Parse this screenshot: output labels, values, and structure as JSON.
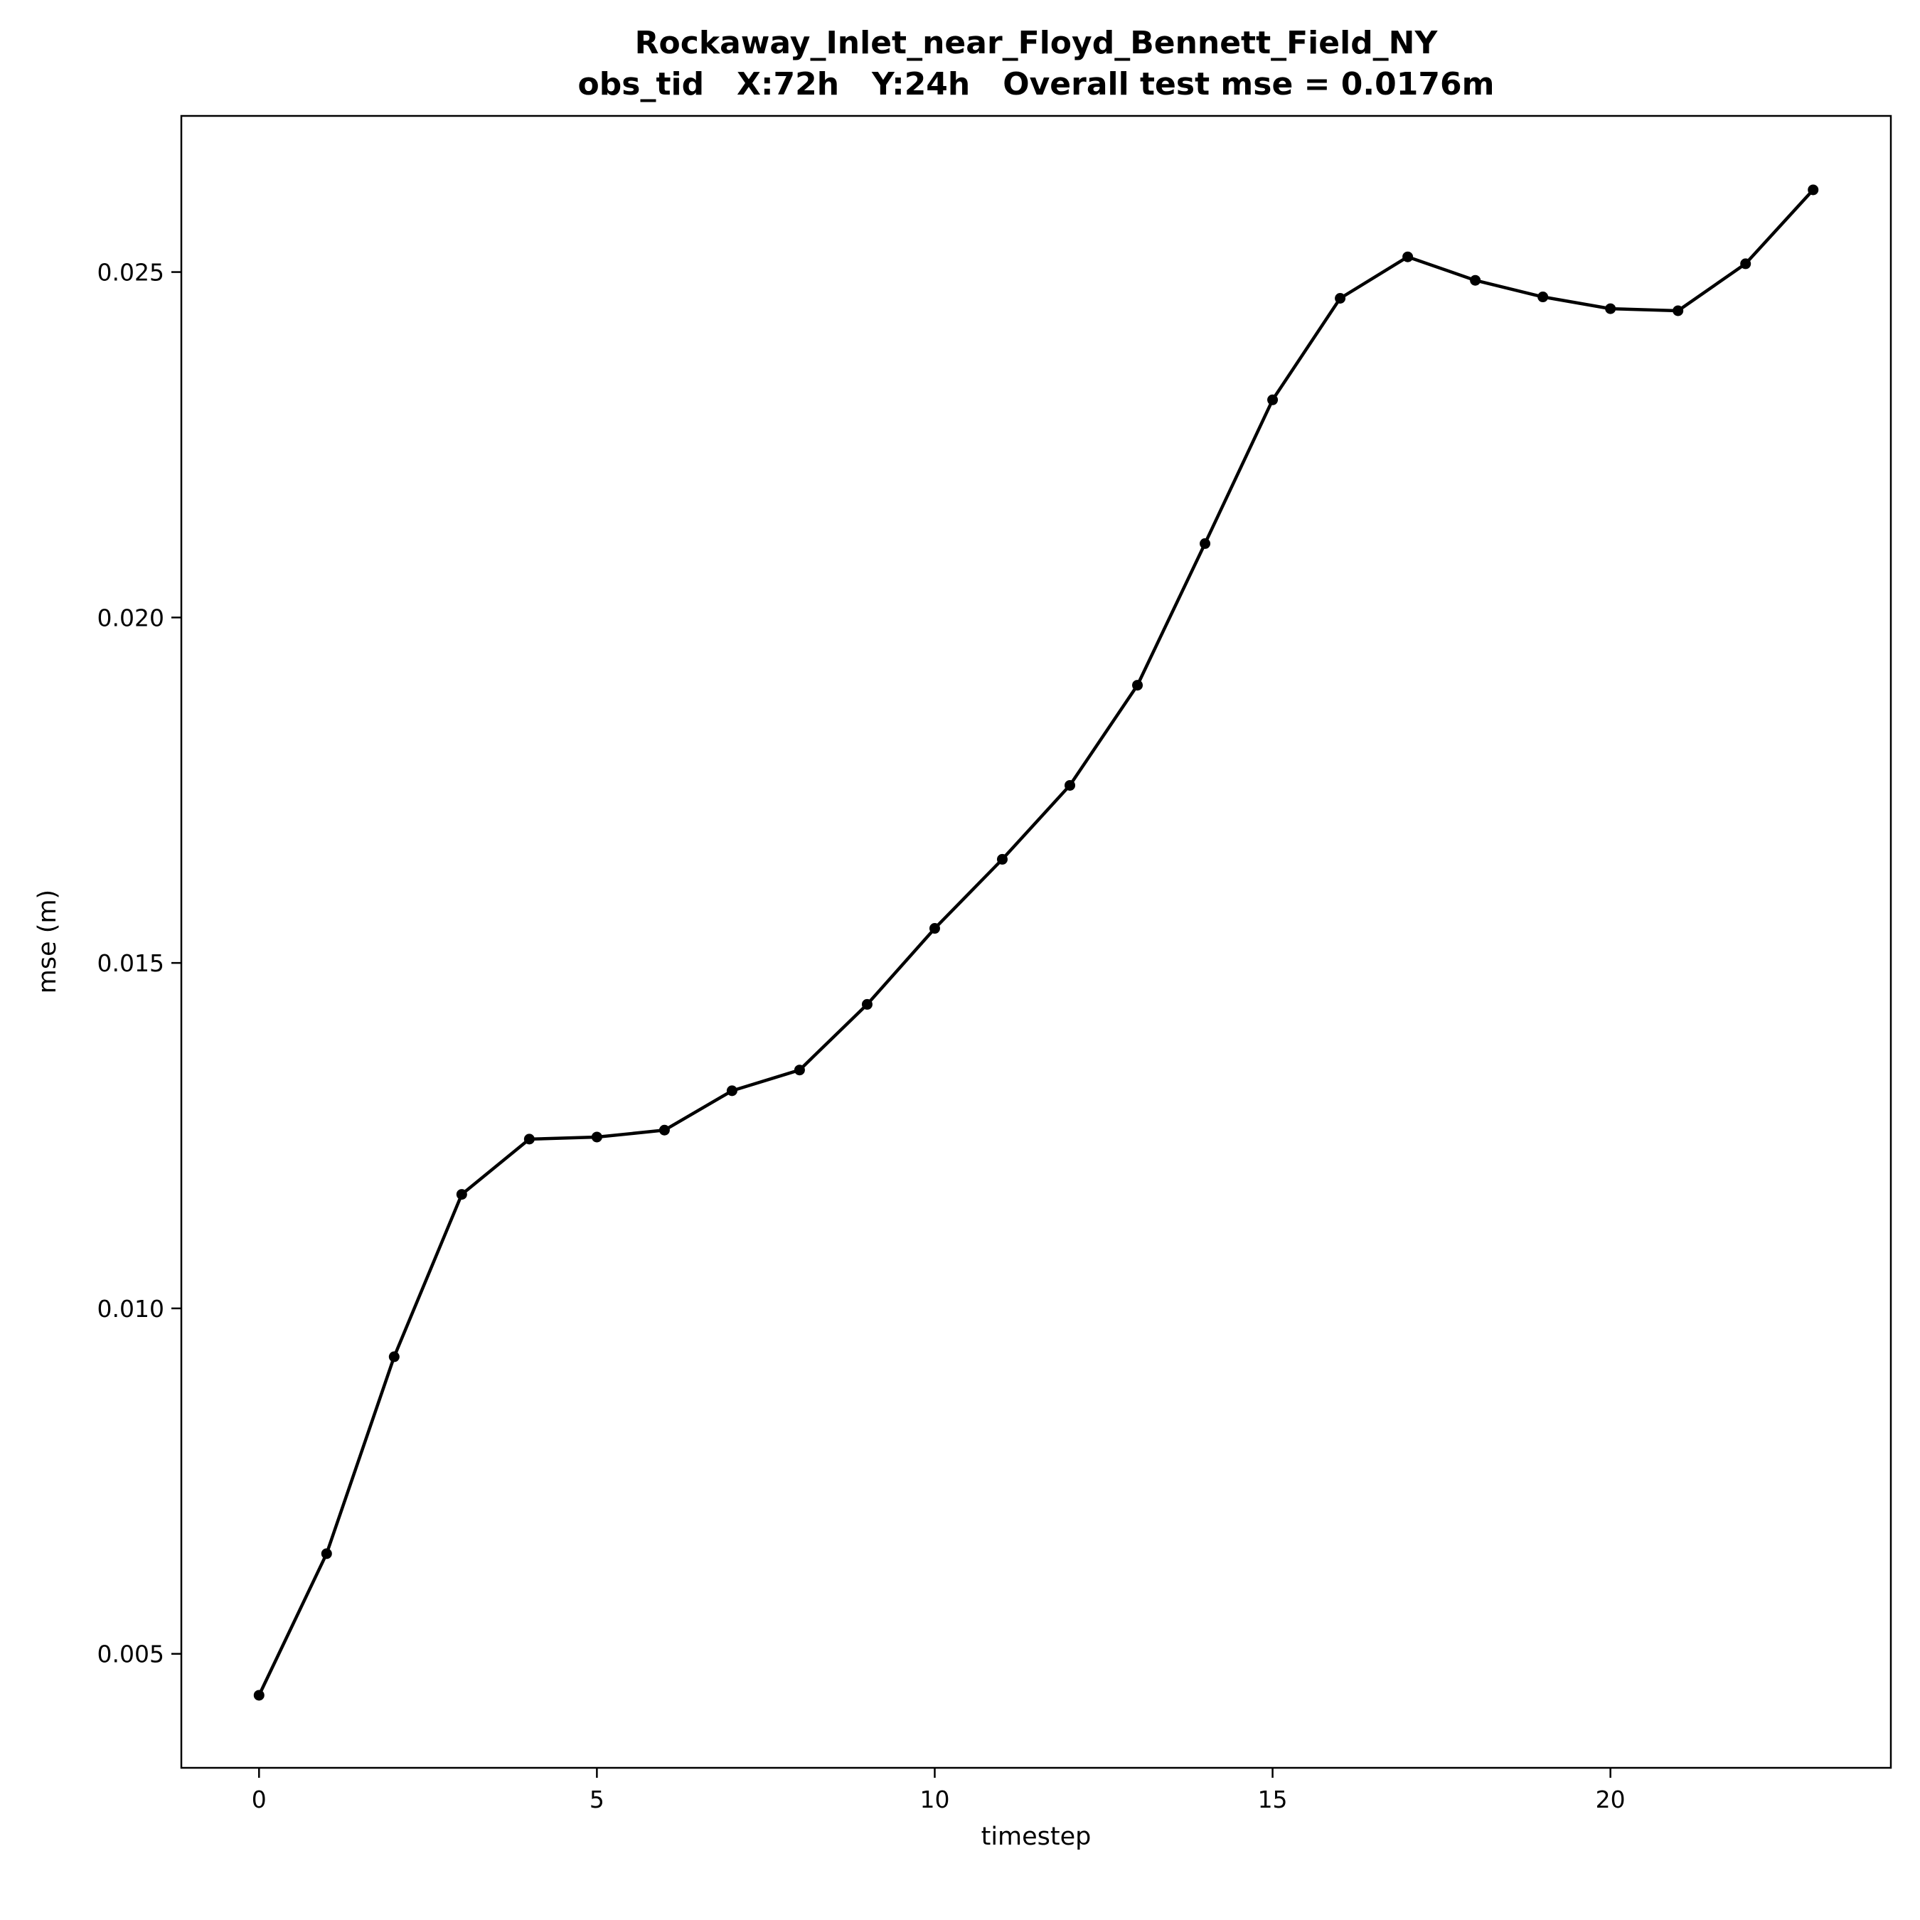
{
  "chart_data": {
    "type": "line",
    "title": "Rockaway_Inlet_near_Floyd_Bennett_Field_NY",
    "subtitle": "obs_tid   X:72h   Y:24h   Overall test mse = 0.0176m",
    "xlabel": "timestep",
    "ylabel": "mse (m)",
    "xlim": [
      -1.15,
      24.15
    ],
    "ylim": [
      0.00335,
      0.02726
    ],
    "xticks": [
      0,
      5,
      10,
      15,
      20
    ],
    "xtick_labels": [
      "0",
      "5",
      "10",
      "15",
      "20"
    ],
    "yticks": [
      0.005,
      0.01,
      0.015,
      0.02,
      0.025
    ],
    "ytick_labels": [
      "0.005",
      "0.010",
      "0.015",
      "0.020",
      "0.025"
    ],
    "grid": false,
    "legend": "none",
    "series": [
      {
        "color": "#000000",
        "marker": "circle",
        "x": [
          0,
          1,
          2,
          3,
          4,
          5,
          6,
          7,
          8,
          9,
          10,
          11,
          12,
          13,
          14,
          15,
          16,
          17,
          18,
          19,
          20,
          21,
          22,
          23
        ],
        "y": [
          0.0044,
          0.00645,
          0.0093,
          0.01165,
          0.01245,
          0.01248,
          0.01258,
          0.01315,
          0.01345,
          0.0144,
          0.0155,
          0.0165,
          0.01757,
          0.01902,
          0.02107,
          0.02315,
          0.02462,
          0.02522,
          0.02488,
          0.02464,
          0.02447,
          0.02444,
          0.02512,
          0.02619
        ]
      }
    ]
  }
}
